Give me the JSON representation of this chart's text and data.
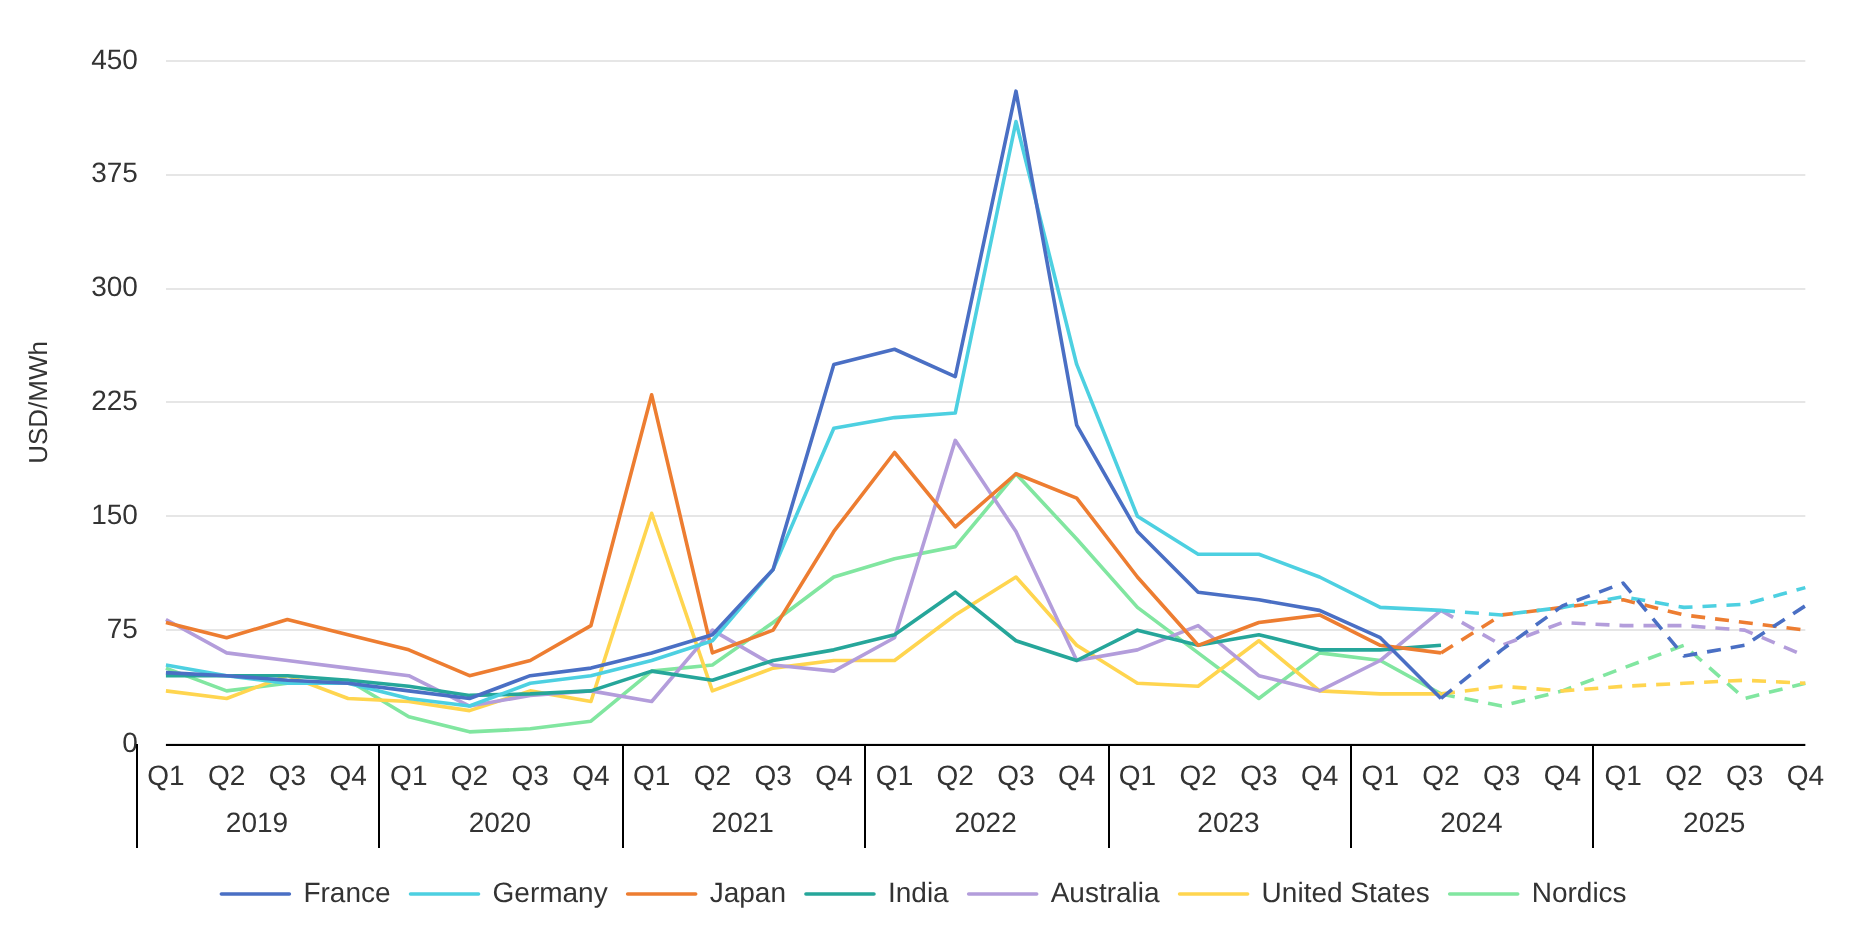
{
  "chart_data": {
    "type": "line",
    "ylabel": "USD/MWh",
    "categories": [
      "Q1",
      "Q2",
      "Q3",
      "Q4",
      "Q1",
      "Q2",
      "Q3",
      "Q4",
      "Q1",
      "Q2",
      "Q3",
      "Q4",
      "Q1",
      "Q2",
      "Q3",
      "Q4",
      "Q1",
      "Q2",
      "Q3",
      "Q4",
      "Q1",
      "Q2",
      "Q3",
      "Q4",
      "Q1",
      "Q2",
      "Q3",
      "Q4"
    ],
    "annotations": [
      "2019",
      "2020",
      "2021",
      "2022",
      "2023",
      "2024",
      "2025"
    ],
    "ylim": [
      0,
      450
    ],
    "yticks": [
      0,
      75,
      150,
      225,
      300,
      375,
      450
    ],
    "grid": "y",
    "legend": "bottom",
    "marker": "none",
    "series": [
      {
        "name": "France",
        "color": "#4a6fc4",
        "line_style": "solid",
        "values": [
          47,
          45,
          42,
          40,
          35,
          30,
          45,
          50,
          60,
          72,
          115,
          250,
          260,
          242,
          430,
          210,
          140,
          100,
          95,
          88,
          70,
          30,
          null,
          null,
          null,
          null,
          null,
          null
        ]
      },
      {
        "name": "Germany",
        "color": "#4dd0e1",
        "line_style": "solid",
        "values": [
          52,
          45,
          40,
          40,
          30,
          25,
          40,
          45,
          55,
          68,
          115,
          208,
          215,
          218,
          410,
          250,
          150,
          125,
          125,
          110,
          90,
          88,
          null,
          null,
          null,
          null,
          null,
          null
        ]
      },
      {
        "name": "Japan",
        "color": "#ed7d31",
        "line_style": "solid",
        "values": [
          80,
          70,
          82,
          72,
          62,
          45,
          55,
          78,
          230,
          60,
          75,
          140,
          192,
          143,
          178,
          162,
          110,
          65,
          80,
          85,
          65,
          60,
          null,
          null,
          null,
          null,
          null,
          null
        ]
      },
      {
        "name": "India",
        "color": "#26a69a",
        "line_style": "solid",
        "values": [
          45,
          45,
          45,
          42,
          38,
          32,
          33,
          35,
          48,
          42,
          55,
          62,
          72,
          100,
          68,
          55,
          75,
          65,
          72,
          62,
          62,
          65,
          null,
          null,
          null,
          null,
          null,
          null
        ]
      },
      {
        "name": "Australia",
        "color": "#b39ddb",
        "line_style": "solid",
        "values": [
          82,
          60,
          55,
          50,
          45,
          25,
          32,
          35,
          28,
          75,
          52,
          48,
          70,
          200,
          140,
          55,
          62,
          78,
          45,
          35,
          55,
          88,
          null,
          null,
          null,
          null,
          null,
          null
        ]
      },
      {
        "name": "United States",
        "color": "#ffd54f",
        "line_style": "solid",
        "values": [
          35,
          30,
          45,
          30,
          28,
          22,
          35,
          28,
          152,
          35,
          50,
          55,
          55,
          85,
          110,
          65,
          40,
          38,
          68,
          35,
          33,
          33,
          null,
          null,
          null,
          null,
          null,
          null
        ]
      },
      {
        "name": "Nordics",
        "color": "#81e6a0",
        "line_style": "solid",
        "values": [
          50,
          35,
          40,
          42,
          18,
          8,
          10,
          15,
          48,
          52,
          80,
          110,
          122,
          130,
          178,
          135,
          90,
          60,
          30,
          60,
          55,
          33,
          null,
          null,
          null,
          null,
          null,
          null
        ]
      },
      {
        "color": "#4a6fc4",
        "line_style": "dashed",
        "values": [
          null,
          null,
          null,
          null,
          null,
          null,
          null,
          null,
          null,
          null,
          null,
          null,
          null,
          null,
          null,
          null,
          null,
          null,
          null,
          null,
          null,
          30,
          62,
          91,
          106,
          58,
          65,
          91
        ]
      },
      {
        "color": "#4dd0e1",
        "line_style": "dashed",
        "values": [
          null,
          null,
          null,
          null,
          null,
          null,
          null,
          null,
          null,
          null,
          null,
          null,
          null,
          null,
          null,
          null,
          null,
          null,
          null,
          null,
          null,
          88,
          85,
          90,
          97,
          90,
          92,
          103
        ]
      },
      {
        "color": "#ed7d31",
        "line_style": "dashed",
        "values": [
          null,
          null,
          null,
          null,
          null,
          null,
          null,
          null,
          null,
          null,
          null,
          null,
          null,
          null,
          null,
          null,
          null,
          null,
          null,
          null,
          null,
          60,
          85,
          90,
          95,
          85,
          80,
          75
        ]
      },
      {
        "color": "#b39ddb",
        "line_style": "dashed",
        "values": [
          null,
          null,
          null,
          null,
          null,
          null,
          null,
          null,
          null,
          null,
          null,
          null,
          null,
          null,
          null,
          null,
          null,
          null,
          null,
          null,
          null,
          88,
          65,
          80,
          78,
          78,
          75,
          58
        ]
      },
      {
        "color": "#ffd54f",
        "line_style": "dashed",
        "values": [
          null,
          null,
          null,
          null,
          null,
          null,
          null,
          null,
          null,
          null,
          null,
          null,
          null,
          null,
          null,
          null,
          null,
          null,
          null,
          null,
          null,
          33,
          38,
          35,
          38,
          40,
          42,
          40
        ]
      },
      {
        "color": "#81e6a0",
        "line_style": "dashed",
        "values": [
          null,
          null,
          null,
          null,
          null,
          null,
          null,
          null,
          null,
          null,
          null,
          null,
          null,
          null,
          null,
          null,
          null,
          null,
          null,
          null,
          null,
          33,
          25,
          35,
          50,
          65,
          30,
          40
        ]
      }
    ]
  }
}
